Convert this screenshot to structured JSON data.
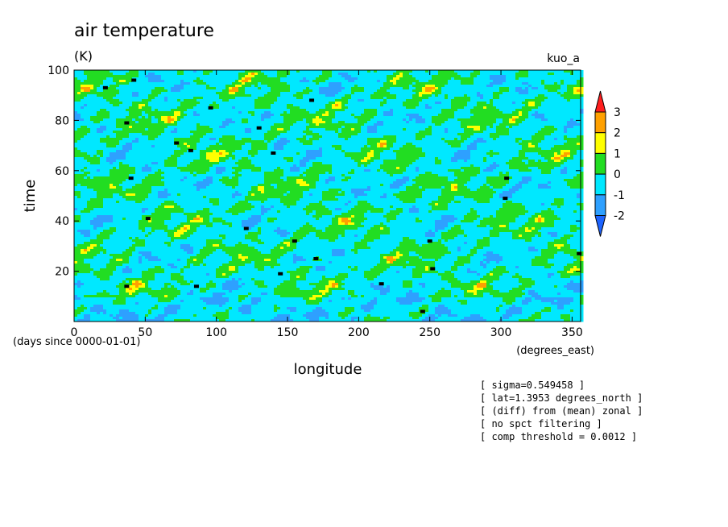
{
  "chart_data": {
    "type": "heatmap",
    "title": "air temperature",
    "units": "(K)",
    "run_label": "kuo_a",
    "xlabel": "longitude",
    "ylabel": "time",
    "x_units": "(degrees_east)",
    "y_units": "(days since 0000-01-01)",
    "xlim": [
      0,
      356
    ],
    "ylim": [
      0,
      100
    ],
    "x_ticks": [
      0,
      50,
      100,
      150,
      200,
      250,
      300,
      350
    ],
    "y_ticks": [
      20,
      40,
      60,
      80,
      100
    ],
    "colorbar": {
      "levels": [
        -2,
        -1,
        0,
        1,
        2,
        3
      ],
      "colors": [
        "#1e64ff",
        "#2ea0ff",
        "#00e8ff",
        "#22dd22",
        "#ffff00",
        "#ffa000",
        "#ff1e1e"
      ]
    },
    "missing_color": "#000000",
    "info_lines": [
      "[ sigma=0.549458 ]",
      "[ lat=1.3953 degrees_north ]",
      "[ (diff) from (mean) zonal ]",
      "[ no spct filtering ]",
      "[ comp threshold = 0.0012 ]"
    ]
  }
}
